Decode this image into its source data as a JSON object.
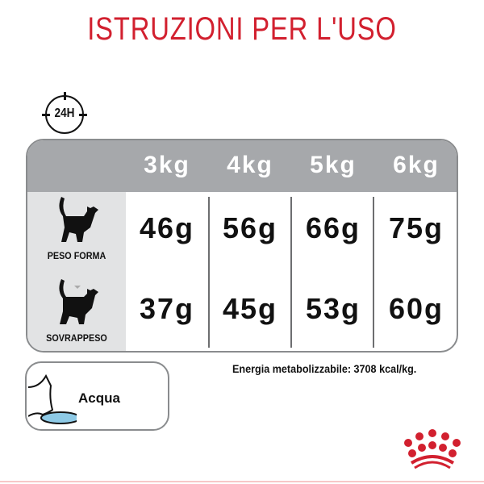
{
  "title": "ISTRUZIONI PER L'USO",
  "clock_label": "24H",
  "table": {
    "weights": [
      "3kg",
      "4kg",
      "5kg",
      "6kg"
    ],
    "rows": [
      {
        "label": "PESO FORMA",
        "icon": "cat-normal-icon",
        "values": [
          "46g",
          "56g",
          "66g",
          "75g"
        ]
      },
      {
        "label": "SOVRAPPESO",
        "icon": "cat-overweight-icon",
        "values": [
          "37g",
          "45g",
          "53g",
          "60g"
        ]
      }
    ]
  },
  "energy": "Energia metabolizzabile: 3708 kcal/kg.",
  "water_label": "Acqua",
  "colors": {
    "brand_red": "#d2202f",
    "header_gray": "#a6a8ab",
    "side_gray": "#e2e3e4",
    "water_blue": "#8ecae6"
  }
}
